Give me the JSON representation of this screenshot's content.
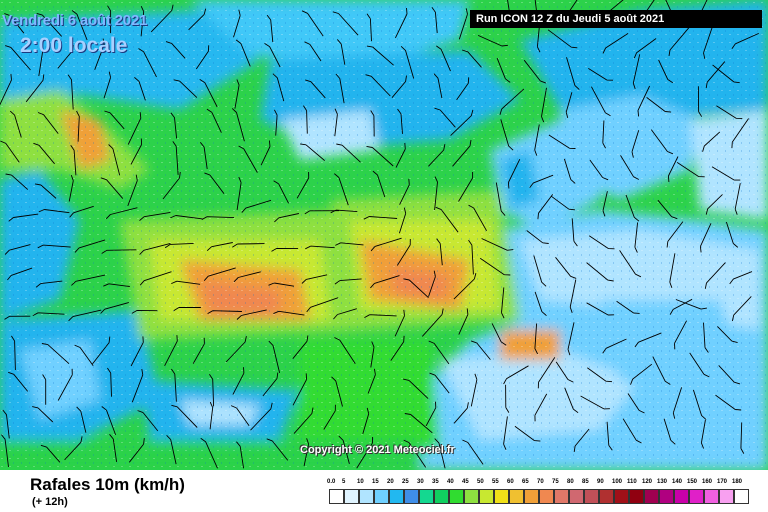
{
  "header": {
    "date": "Vendredi 6 août 2021",
    "time": "2:00 locale",
    "run": "Run ICON 12 Z du Jeudi 5 août 2021"
  },
  "copyright": "Copyright © 2021 Meteociel.fr",
  "footer": {
    "title": "Rafales 10m (km/h)",
    "subtitle": "(+ 12h)"
  },
  "legend": {
    "ticks": [
      "0.0",
      "5",
      "10",
      "15",
      "20",
      "25",
      "30",
      "35",
      "40",
      "45",
      "50",
      "55",
      "60",
      "65",
      "70",
      "75",
      "80",
      "85",
      "90",
      "100",
      "110",
      "120",
      "130",
      "140",
      "150",
      "160",
      "170",
      "180"
    ],
    "colors": [
      "#ffffff",
      "#e0f4ff",
      "#b0e4ff",
      "#6fd0ff",
      "#22b8f0",
      "#3f8ee8",
      "#14d890",
      "#10d060",
      "#30dc30",
      "#8ee040",
      "#c8e830",
      "#f0e018",
      "#f0c030",
      "#f0a038",
      "#f08850",
      "#e07868",
      "#d06870",
      "#c05058",
      "#b03030",
      "#a01018",
      "#900010",
      "#a00050",
      "#b00080",
      "#c800a8",
      "#e020c8",
      "#f060e0",
      "#f8a0f0",
      "#ffffff"
    ]
  },
  "colors": {
    "date_text": "#7fb8ff",
    "run_background": "#000000"
  }
}
